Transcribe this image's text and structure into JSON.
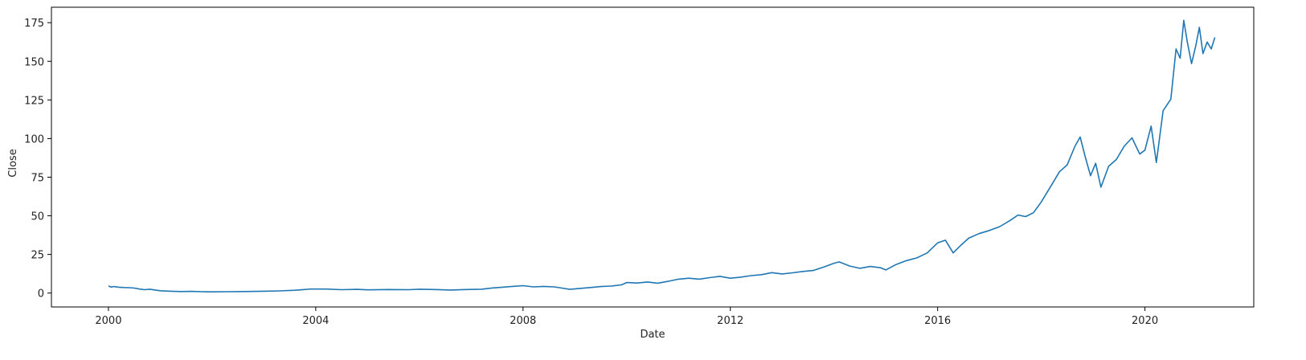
{
  "chart_data": {
    "type": "line",
    "title": "",
    "xlabel": "Date",
    "ylabel": "Close",
    "xlim": [
      1998.9,
      2022.1
    ],
    "ylim": [
      -9,
      185
    ],
    "x_ticks": [
      {
        "value": 2000,
        "label": "2000"
      },
      {
        "value": 2004,
        "label": "2004"
      },
      {
        "value": 2008,
        "label": "2008"
      },
      {
        "value": 2012,
        "label": "2012"
      },
      {
        "value": 2016,
        "label": "2016"
      },
      {
        "value": 2020,
        "label": "2020"
      }
    ],
    "y_ticks": [
      {
        "value": 0,
        "label": "0"
      },
      {
        "value": 25,
        "label": "25"
      },
      {
        "value": 50,
        "label": "50"
      },
      {
        "value": 75,
        "label": "75"
      },
      {
        "value": 100,
        "label": "100"
      },
      {
        "value": 125,
        "label": "125"
      },
      {
        "value": 150,
        "label": "150"
      },
      {
        "value": 175,
        "label": "175"
      }
    ],
    "grid": false,
    "line_color": "#1f77b4",
    "series": [
      {
        "points": [
          [
            2000.0,
            4.6
          ],
          [
            2000.05,
            3.9
          ],
          [
            2000.1,
            4.2
          ],
          [
            2000.2,
            3.8
          ],
          [
            2000.3,
            3.6
          ],
          [
            2000.4,
            3.5
          ],
          [
            2000.5,
            3.2
          ],
          [
            2000.6,
            2.6
          ],
          [
            2000.7,
            2.2
          ],
          [
            2000.8,
            2.5
          ],
          [
            2000.9,
            2.0
          ],
          [
            2001.0,
            1.5
          ],
          [
            2001.2,
            1.2
          ],
          [
            2001.4,
            1.0
          ],
          [
            2001.6,
            1.1
          ],
          [
            2001.8,
            0.9
          ],
          [
            2002.0,
            0.8
          ],
          [
            2002.3,
            0.9
          ],
          [
            2002.6,
            1.0
          ],
          [
            2003.0,
            1.2
          ],
          [
            2003.3,
            1.4
          ],
          [
            2003.6,
            1.8
          ],
          [
            2003.9,
            2.6
          ],
          [
            2004.2,
            2.6
          ],
          [
            2004.5,
            2.2
          ],
          [
            2004.8,
            2.4
          ],
          [
            2005.0,
            2.1
          ],
          [
            2005.4,
            2.3
          ],
          [
            2005.8,
            2.2
          ],
          [
            2006.0,
            2.5
          ],
          [
            2006.3,
            2.3
          ],
          [
            2006.6,
            2.0
          ],
          [
            2006.9,
            2.3
          ],
          [
            2007.2,
            2.5
          ],
          [
            2007.4,
            3.3
          ],
          [
            2007.6,
            3.8
          ],
          [
            2007.8,
            4.3
          ],
          [
            2008.0,
            4.8
          ],
          [
            2008.2,
            4.0
          ],
          [
            2008.4,
            4.3
          ],
          [
            2008.6,
            4.0
          ],
          [
            2008.75,
            3.2
          ],
          [
            2008.9,
            2.4
          ],
          [
            2009.1,
            3.0
          ],
          [
            2009.3,
            3.6
          ],
          [
            2009.5,
            4.2
          ],
          [
            2009.7,
            4.5
          ],
          [
            2009.9,
            5.3
          ],
          [
            2010.0,
            6.8
          ],
          [
            2010.2,
            6.5
          ],
          [
            2010.4,
            7.2
          ],
          [
            2010.6,
            6.4
          ],
          [
            2010.8,
            7.6
          ],
          [
            2011.0,
            9.0
          ],
          [
            2011.2,
            9.6
          ],
          [
            2011.4,
            9.0
          ],
          [
            2011.6,
            10.0
          ],
          [
            2011.8,
            10.8
          ],
          [
            2012.0,
            9.6
          ],
          [
            2012.2,
            10.3
          ],
          [
            2012.4,
            11.3
          ],
          [
            2012.6,
            11.9
          ],
          [
            2012.8,
            13.2
          ],
          [
            2013.0,
            12.4
          ],
          [
            2013.2,
            13.1
          ],
          [
            2013.4,
            14.0
          ],
          [
            2013.6,
            14.6
          ],
          [
            2013.8,
            16.8
          ],
          [
            2014.0,
            19.3
          ],
          [
            2014.1,
            20.2
          ],
          [
            2014.3,
            17.5
          ],
          [
            2014.5,
            16.0
          ],
          [
            2014.7,
            17.2
          ],
          [
            2014.9,
            16.4
          ],
          [
            2015.0,
            15.0
          ],
          [
            2015.2,
            18.5
          ],
          [
            2015.4,
            21.0
          ],
          [
            2015.6,
            22.8
          ],
          [
            2015.8,
            26.0
          ],
          [
            2016.0,
            32.5
          ],
          [
            2016.15,
            34.2
          ],
          [
            2016.3,
            26.0
          ],
          [
            2016.45,
            31.0
          ],
          [
            2016.6,
            35.5
          ],
          [
            2016.8,
            38.5
          ],
          [
            2017.0,
            40.5
          ],
          [
            2017.2,
            43.0
          ],
          [
            2017.4,
            47.0
          ],
          [
            2017.55,
            50.5
          ],
          [
            2017.7,
            49.5
          ],
          [
            2017.85,
            52.0
          ],
          [
            2018.0,
            59.0
          ],
          [
            2018.2,
            70.0
          ],
          [
            2018.35,
            78.5
          ],
          [
            2018.5,
            83.0
          ],
          [
            2018.65,
            95.0
          ],
          [
            2018.75,
            101.0
          ],
          [
            2018.85,
            88.0
          ],
          [
            2018.95,
            76.0
          ],
          [
            2019.05,
            84.0
          ],
          [
            2019.15,
            68.5
          ],
          [
            2019.3,
            82.0
          ],
          [
            2019.45,
            86.5
          ],
          [
            2019.6,
            95.0
          ],
          [
            2019.75,
            100.5
          ],
          [
            2019.9,
            90.0
          ],
          [
            2020.0,
            92.5
          ],
          [
            2020.12,
            108.0
          ],
          [
            2020.22,
            84.5
          ],
          [
            2020.35,
            118.0
          ],
          [
            2020.5,
            125.5
          ],
          [
            2020.6,
            158.0
          ],
          [
            2020.68,
            152.0
          ],
          [
            2020.75,
            176.5
          ],
          [
            2020.82,
            162.0
          ],
          [
            2020.9,
            148.5
          ],
          [
            2020.98,
            160.0
          ],
          [
            2021.05,
            172.0
          ],
          [
            2021.12,
            155.0
          ],
          [
            2021.2,
            162.5
          ],
          [
            2021.28,
            158.0
          ],
          [
            2021.35,
            165.5
          ]
        ]
      }
    ]
  }
}
